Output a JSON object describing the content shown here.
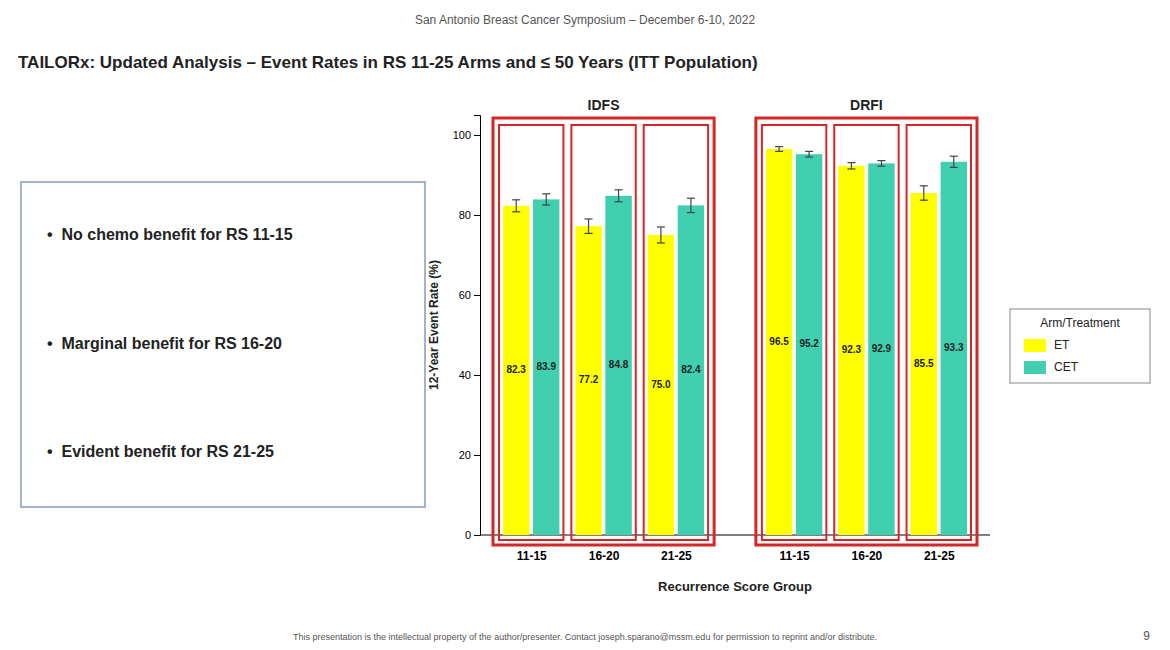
{
  "chart_data": {
    "type": "bar",
    "title": "TAILORx: Updated Analysis – Event Rates in RS 11-25 Arms and ≤ 50 Years (ITT Population)",
    "subtitle": "San Antonio Breast Cancer Symposium – December 6-10, 2022",
    "annotations": [
      "•  No chemo benefit for RS 11-15",
      "•  Marginal benefit for RS 16-20",
      "•  Evident benefit for RS 21-25"
    ],
    "footer": "This presentation is the intellectual property of the author/presenter. Contact joseph.sparano@mssm.edu for permission to reprint and/or distribute.",
    "page_number": "9",
    "xlabel": "Recurrence Score Group",
    "ylabel": "12-Year Event Rate (%)",
    "groups": [
      "IDFS",
      "DRFI"
    ],
    "categories": [
      "11-15",
      "16-20",
      "21-25",
      "11-15",
      "16-20",
      "21-25"
    ],
    "series": [
      {
        "name": "ET",
        "color": "#ffff00",
        "values": [
          82.3,
          77.2,
          75.0,
          96.5,
          92.3,
          85.5
        ],
        "value_labels": [
          "82.3",
          "77.2",
          "75.0",
          "96.5",
          "92.3",
          "85.5"
        ],
        "errors": [
          1.5,
          1.8,
          2.0,
          0.6,
          0.8,
          1.8
        ]
      },
      {
        "name": "CET",
        "color": "#40d0b0",
        "values": [
          83.9,
          84.8,
          82.4,
          95.2,
          92.9,
          93.3
        ],
        "value_labels": [
          "83.9",
          "84.8",
          "82.4",
          "95.2",
          "92.9",
          "93.3"
        ],
        "errors": [
          1.4,
          1.5,
          1.8,
          0.7,
          0.7,
          1.4
        ]
      }
    ],
    "ylim": [
      0,
      105
    ],
    "yticks": [
      0,
      20,
      40,
      60,
      80,
      100
    ],
    "grid": false,
    "data_labels": true,
    "legend": "right",
    "legend_title": "Arm/Treatment"
  }
}
